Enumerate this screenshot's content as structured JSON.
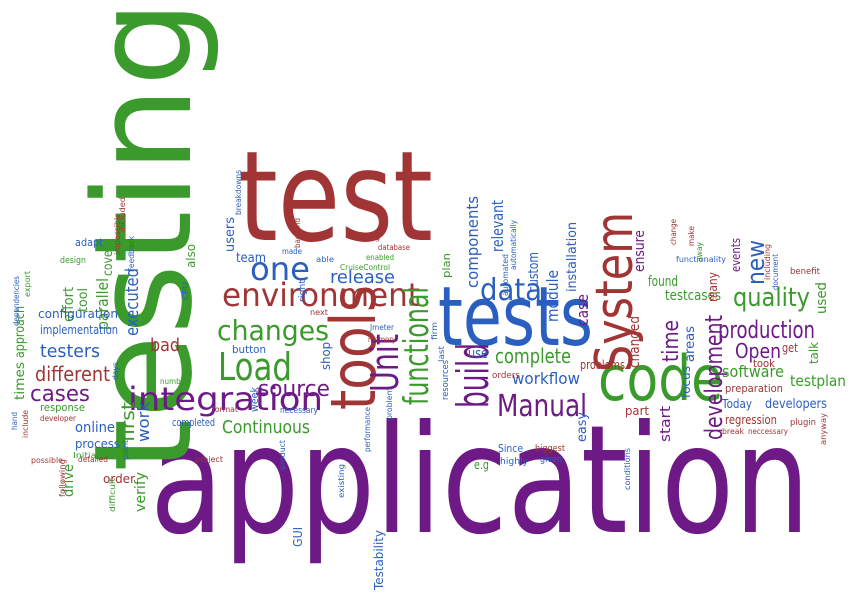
{
  "words": [
    "application",
    "testing",
    "test",
    "tests",
    "tools",
    "code",
    "System",
    "environment",
    "changes",
    "Load",
    "integration",
    "one",
    "data",
    "build",
    "Unit",
    "functional",
    "Manual",
    "complete",
    "workflow",
    "production",
    "quality",
    "development",
    "new",
    "Open",
    "software",
    "testplan",
    "time",
    "testcases",
    "Continuous",
    "source",
    "cases",
    "different",
    "testers",
    "executed",
    "first",
    "work",
    "online",
    "process",
    "drive",
    "verify",
    "order",
    "effort",
    "tool",
    "parallel",
    "configuration",
    "implementation",
    "times",
    "approach",
    "response",
    "bad",
    "release",
    "users",
    "team",
    "Testability",
    "GUI",
    "e.g",
    "relevant",
    "components",
    "module",
    "custom",
    "installation",
    "case",
    "ensure",
    "found",
    "changed",
    "areas",
    "focus",
    "start",
    "part",
    "easy",
    "problems",
    "plan",
    "use",
    "Today",
    "developers",
    "regression",
    "preparation",
    "took",
    "get",
    "used",
    "talk",
    "events",
    "many",
    "benefit",
    "button",
    "week",
    "necessary",
    "completed",
    "adapt",
    "design",
    "cover",
    "also",
    "Feedback",
    "Jmeter",
    "CruiseControl",
    "enabled",
    "database",
    "logging",
    "made",
    "backend",
    "breakdowns",
    "memory",
    "next",
    "able",
    "CPU",
    "format",
    "number",
    "days",
    "product",
    "existing",
    "performance",
    "detailed",
    "hand",
    "include",
    "possible",
    "following",
    "developer",
    "difficult",
    "point",
    "project",
    "export",
    "dependencies",
    "Initial",
    "impossible",
    "included",
    "resources",
    "firm",
    "last",
    "biggest",
    "given",
    "highly",
    "automatically",
    "automated",
    "orders",
    "Since",
    "plugin",
    "anyway",
    "neccessary",
    "break",
    "conditions",
    "functionality",
    "make",
    "away",
    "change",
    "document",
    "including",
    "problem",
    "shop",
    "right"
  ]
}
